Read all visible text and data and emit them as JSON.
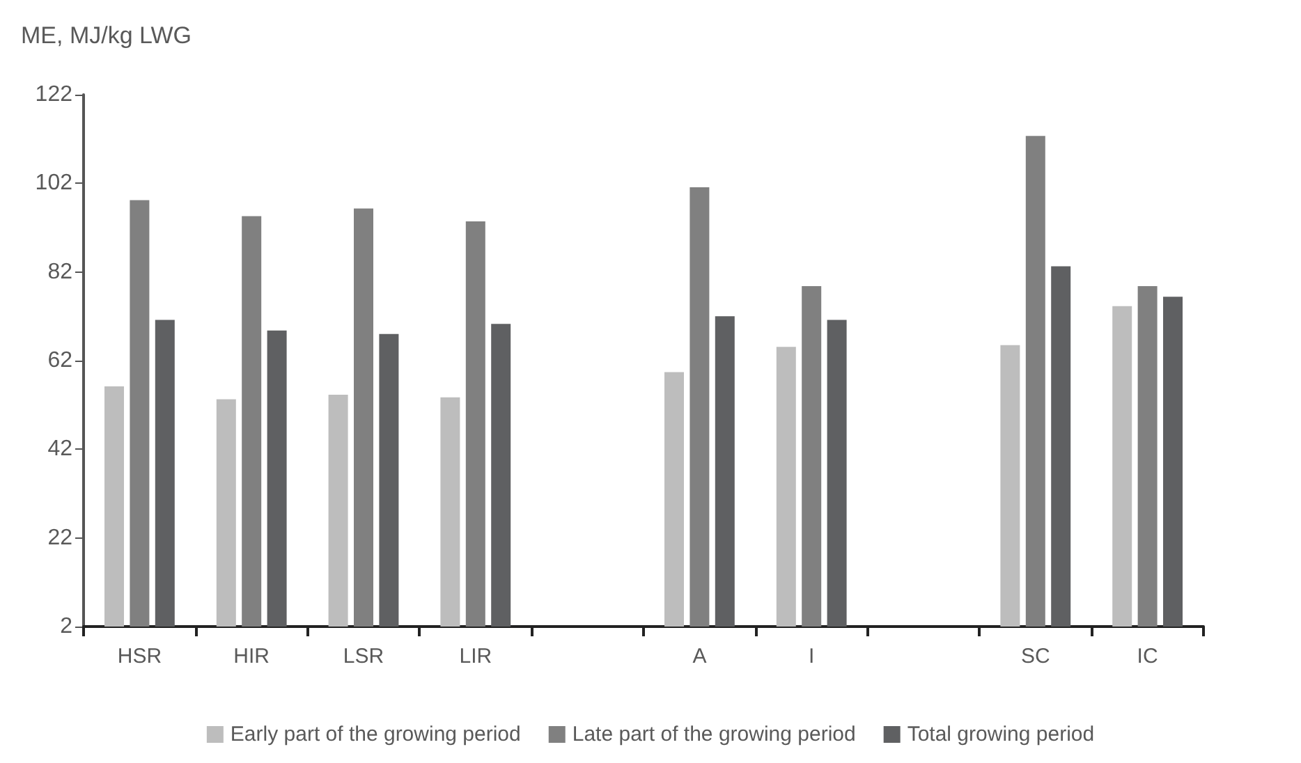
{
  "chart_data": {
    "type": "bar",
    "ylabel": "ME, MJ/kg LWG",
    "categories": [
      "HSR",
      "HIR",
      "LSR",
      "LIR",
      null,
      "A",
      "I",
      null,
      "SC",
      "IC"
    ],
    "series": [
      {
        "name": "Early part of the growing period",
        "color": "#bdbdbd",
        "values": [
          56.2,
          53.3,
          54.3,
          53.7,
          null,
          59.4,
          65.1,
          null,
          65.5,
          74.3
        ]
      },
      {
        "name": "Late part of the growing period",
        "color": "#808080",
        "values": [
          98.2,
          94.6,
          96.3,
          93.4,
          null,
          101.1,
          78.8,
          null,
          112.7,
          78.8
        ]
      },
      {
        "name": "Total growing period",
        "color": "#5f6062",
        "values": [
          71.2,
          68.8,
          68.0,
          70.3,
          null,
          72.0,
          71.2,
          null,
          83.3,
          76.4
        ]
      }
    ],
    "ylim": [
      2,
      122
    ],
    "yticks": [
      2,
      22,
      42,
      62,
      82,
      102,
      122
    ],
    "grid": false,
    "legend": "bottom"
  }
}
